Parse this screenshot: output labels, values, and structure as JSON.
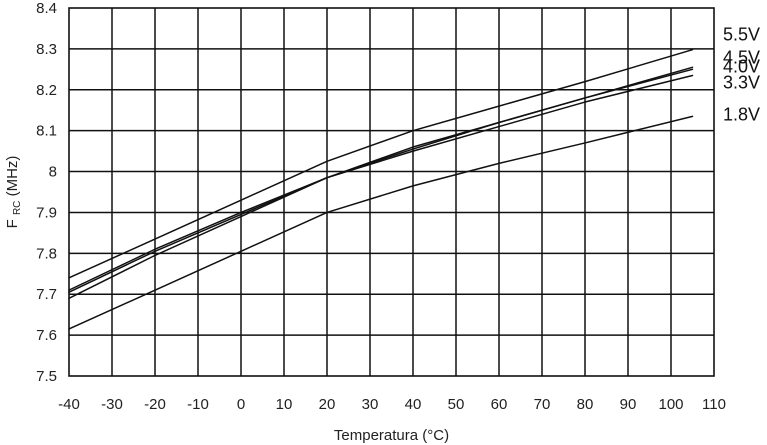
{
  "chart_data": {
    "type": "line",
    "title": "",
    "xlabel": "Temperatura (°C)",
    "ylabel_main": "F",
    "ylabel_sub": "RC",
    "ylabel_tail": " (MHz)",
    "xlim": [
      -40,
      110
    ],
    "ylim": [
      7.5,
      8.4
    ],
    "x_ticks": [
      -40,
      -30,
      -20,
      -10,
      0,
      10,
      20,
      30,
      40,
      50,
      60,
      70,
      80,
      90,
      100,
      110
    ],
    "y_ticks": [
      "7.5",
      "7.6",
      "7.7",
      "7.8",
      "7.9",
      "8",
      "8.1",
      "8.2",
      "8.3",
      "8.4"
    ],
    "grid": true,
    "legend": "inline-right",
    "line_color": "#111111",
    "x": [
      -40,
      -20,
      0,
      20,
      40,
      60,
      80,
      105
    ],
    "series": [
      {
        "name": "5.5V",
        "values": [
          7.74,
          7.835,
          7.93,
          8.025,
          8.1,
          8.16,
          8.22,
          8.298
        ]
      },
      {
        "name": "4.5V",
        "values": [
          7.71,
          7.81,
          7.9,
          7.985,
          8.06,
          8.12,
          8.18,
          8.255
        ]
      },
      {
        "name": "4.0V",
        "values": [
          7.705,
          7.805,
          7.895,
          7.985,
          8.055,
          8.12,
          8.18,
          8.25
        ]
      },
      {
        "name": "3.3V",
        "values": [
          7.69,
          7.795,
          7.89,
          7.985,
          8.05,
          8.11,
          8.17,
          8.235
        ]
      },
      {
        "name": "1.8V",
        "values": [
          7.615,
          7.71,
          7.805,
          7.9,
          7.965,
          8.02,
          8.07,
          8.135
        ]
      }
    ]
  }
}
